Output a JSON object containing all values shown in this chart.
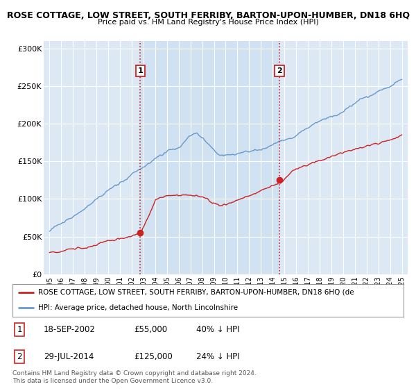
{
  "title1": "ROSE COTTAGE, LOW STREET, SOUTH FERRIBY, BARTON-UPON-HUMBER, DN18 6HQ",
  "title2": "Price paid vs. HM Land Registry's House Price Index (HPI)",
  "bg_color": "#dce9f5",
  "shade_color": "#c8ddf0",
  "hpi_color": "#6699cc",
  "price_color": "#cc2222",
  "vline_color": "#cc2222",
  "marker1_date_x": 2002.72,
  "marker1_price": 55000,
  "marker2_date_x": 2014.58,
  "marker2_price": 125000,
  "legend_text1": "ROSE COTTAGE, LOW STREET, SOUTH FERRIBY, BARTON-UPON-HUMBER, DN18 6HQ (de",
  "legend_text2": "HPI: Average price, detached house, North Lincolnshire",
  "footer": "Contains HM Land Registry data © Crown copyright and database right 2024.\nThis data is licensed under the Open Government Licence v3.0.",
  "xmin": 1994.5,
  "xmax": 2025.5,
  "ylim": [
    0,
    310000
  ],
  "yticks": [
    0,
    50000,
    100000,
    150000,
    200000,
    250000,
    300000
  ],
  "ytick_labels": [
    "£0",
    "£50K",
    "£100K",
    "£150K",
    "£200K",
    "£250K",
    "£300K"
  ]
}
